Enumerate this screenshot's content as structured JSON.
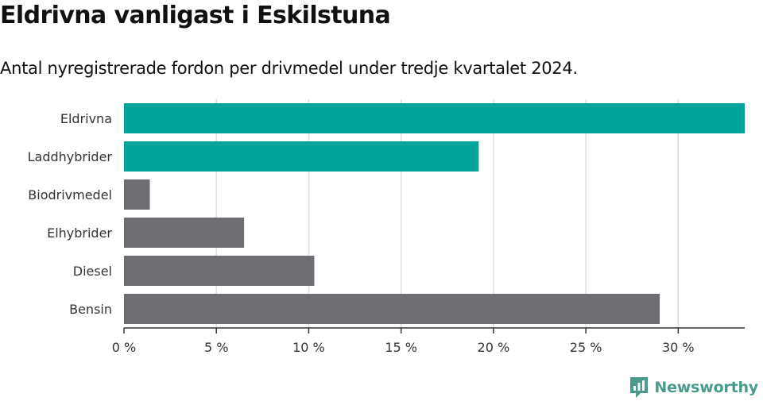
{
  "title": "Eldrivna vanligast i Eskilstuna",
  "subtitle": "Antal nyregistrerade fordon per drivmedel under tredje kvartalet 2024.",
  "brand": {
    "name": "Newsworthy",
    "icon": "newsworthy-logo-icon",
    "color": "#4a9b8e"
  },
  "colors": {
    "highlight": "#00a499",
    "default": "#6e6d73",
    "grid": "#dddddd",
    "axis": "#333333"
  },
  "chart_data": {
    "type": "bar",
    "orientation": "horizontal",
    "categories": [
      "Eldrivna",
      "Laddhybrider",
      "Biodrivmedel",
      "Elhybrider",
      "Diesel",
      "Bensin"
    ],
    "values": [
      33.6,
      19.2,
      1.4,
      6.5,
      10.3,
      29.0
    ],
    "highlighted": [
      true,
      true,
      false,
      false,
      false,
      false
    ],
    "xlim": [
      0,
      33.6
    ],
    "xticks": [
      0,
      5,
      10,
      15,
      20,
      25,
      30
    ],
    "xtick_labels": [
      "0 %",
      "5 %",
      "10 %",
      "15 %",
      "20 %",
      "25 %",
      "30 %"
    ],
    "grid": true
  }
}
